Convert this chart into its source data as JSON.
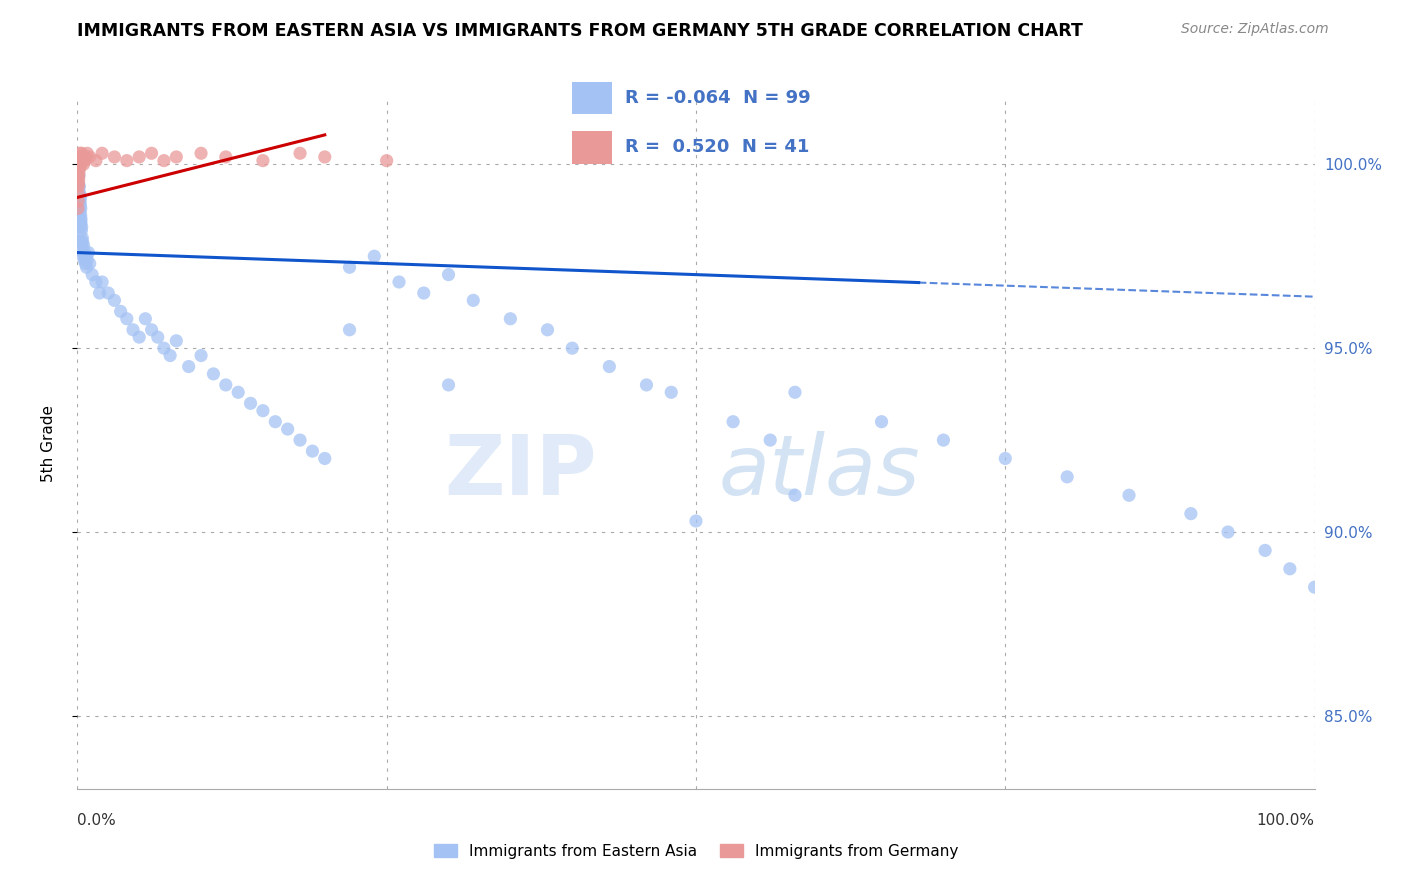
{
  "title": "IMMIGRANTS FROM EASTERN ASIA VS IMMIGRANTS FROM GERMANY 5TH GRADE CORRELATION CHART",
  "source": "Source: ZipAtlas.com",
  "ylabel": "5th Grade",
  "x_min": 0.0,
  "x_max": 100.0,
  "y_min": 83.0,
  "y_max": 101.8,
  "y_ticks": [
    85.0,
    90.0,
    95.0,
    100.0
  ],
  "y_tick_labels": [
    "85.0%",
    "90.0%",
    "95.0%",
    "100.0%"
  ],
  "legend_r_blue": "-0.064",
  "legend_n_blue": "99",
  "legend_r_pink": "0.520",
  "legend_n_pink": "41",
  "blue_color": "#a4c2f4",
  "pink_color": "#ea9999",
  "blue_line_color": "#1155cc",
  "pink_line_color": "#cc0000",
  "blue_line_y0": 97.6,
  "blue_line_y100": 96.4,
  "blue_line_solid_end": 68.0,
  "pink_line_x0": 0.0,
  "pink_line_x1": 20.0,
  "pink_line_y0": 99.1,
  "pink_line_y1": 100.8,
  "blue_scatter_x": [
    0.05,
    0.07,
    0.08,
    0.09,
    0.1,
    0.11,
    0.12,
    0.13,
    0.14,
    0.15,
    0.16,
    0.17,
    0.18,
    0.19,
    0.2,
    0.21,
    0.22,
    0.23,
    0.24,
    0.25,
    0.26,
    0.27,
    0.28,
    0.29,
    0.3,
    0.32,
    0.33,
    0.35,
    0.37,
    0.4,
    0.42,
    0.45,
    0.48,
    0.5,
    0.55,
    0.6,
    0.65,
    0.7,
    0.75,
    0.8,
    0.9,
    1.0,
    1.2,
    1.5,
    1.8,
    2.0,
    2.5,
    3.0,
    3.5,
    4.0,
    4.5,
    5.0,
    5.5,
    6.0,
    6.5,
    7.0,
    7.5,
    8.0,
    9.0,
    10.0,
    11.0,
    12.0,
    13.0,
    14.0,
    15.0,
    16.0,
    17.0,
    18.0,
    19.0,
    20.0,
    22.0,
    24.0,
    26.0,
    28.0,
    30.0,
    32.0,
    35.0,
    38.0,
    40.0,
    43.0,
    46.0,
    48.0,
    50.0,
    53.0,
    56.0,
    58.0,
    22.0,
    30.0,
    58.0,
    65.0,
    70.0,
    75.0,
    80.0,
    85.0,
    90.0,
    93.0,
    96.0,
    98.0,
    100.0
  ],
  "blue_scatter_y": [
    99.2,
    99.5,
    98.8,
    98.6,
    99.0,
    99.3,
    98.5,
    99.7,
    99.1,
    98.7,
    98.9,
    99.4,
    99.0,
    98.3,
    99.2,
    98.5,
    99.0,
    98.7,
    98.4,
    98.9,
    99.1,
    98.6,
    98.8,
    98.4,
    98.5,
    97.9,
    98.2,
    98.3,
    97.8,
    98.0,
    97.9,
    97.6,
    97.5,
    97.8,
    97.4,
    97.6,
    97.3,
    97.5,
    97.2,
    97.4,
    97.6,
    97.3,
    97.0,
    96.8,
    96.5,
    96.8,
    96.5,
    96.3,
    96.0,
    95.8,
    95.5,
    95.3,
    95.8,
    95.5,
    95.3,
    95.0,
    94.8,
    95.2,
    94.5,
    94.8,
    94.3,
    94.0,
    93.8,
    93.5,
    93.3,
    93.0,
    92.8,
    92.5,
    92.2,
    92.0,
    97.2,
    97.5,
    96.8,
    96.5,
    97.0,
    96.3,
    95.8,
    95.5,
    95.0,
    94.5,
    94.0,
    93.8,
    90.3,
    93.0,
    92.5,
    91.0,
    95.5,
    94.0,
    93.8,
    93.0,
    92.5,
    92.0,
    91.5,
    91.0,
    90.5,
    90.0,
    89.5,
    89.0,
    88.5
  ],
  "pink_scatter_x": [
    0.05,
    0.07,
    0.08,
    0.09,
    0.1,
    0.11,
    0.12,
    0.13,
    0.14,
    0.15,
    0.16,
    0.17,
    0.18,
    0.19,
    0.2,
    0.22,
    0.25,
    0.28,
    0.3,
    0.35,
    0.4,
    0.45,
    0.5,
    0.6,
    0.7,
    0.8,
    1.0,
    1.5,
    2.0,
    3.0,
    4.0,
    5.0,
    6.0,
    7.0,
    8.0,
    10.0,
    12.0,
    15.0,
    18.0,
    20.0,
    25.0
  ],
  "pink_scatter_y": [
    98.8,
    99.0,
    99.2,
    99.4,
    99.5,
    99.6,
    99.7,
    99.8,
    99.9,
    100.0,
    100.1,
    100.0,
    99.9,
    100.1,
    100.2,
    100.3,
    100.1,
    100.0,
    100.2,
    100.3,
    100.1,
    100.2,
    100.0,
    100.1,
    100.2,
    100.3,
    100.2,
    100.1,
    100.3,
    100.2,
    100.1,
    100.2,
    100.3,
    100.1,
    100.2,
    100.3,
    100.2,
    100.1,
    100.3,
    100.2,
    100.1
  ]
}
